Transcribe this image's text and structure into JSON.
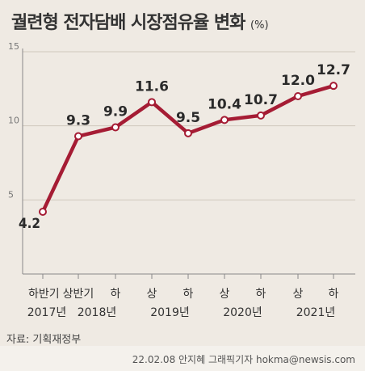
{
  "title": "궐련형 전자담배 시장점유율 변화",
  "unit": "(%)",
  "source": "자료: 기획재정부",
  "credit": "22.02.08 안지혜 그래픽기자 hokma@newsis.com",
  "colors": {
    "line": "#a51c34",
    "background": "#efeae3",
    "grid": "#cfc8be"
  },
  "chart_data": {
    "type": "line",
    "title": "궐련형 전자담배 시장점유율 변화",
    "ylabel": "(%)",
    "xlabel": "",
    "ylim": [
      0,
      15
    ],
    "yticks": [
      5,
      10,
      15
    ],
    "grid": true,
    "categories": [
      "하반기 2017년",
      "상반기 2018년",
      "하 2018년",
      "상 2019년",
      "하 2019년",
      "상 2020년",
      "하 2020년",
      "상 2021년",
      "하 2021년"
    ],
    "tick_labels": [
      "하반기",
      "상반기",
      "하",
      "상",
      "하",
      "상",
      "하",
      "상",
      "하"
    ],
    "year_labels": [
      {
        "label": "2017년",
        "from": 0,
        "to": 0
      },
      {
        "label": "2018년",
        "from": 1,
        "to": 2
      },
      {
        "label": "2019년",
        "from": 3,
        "to": 4
      },
      {
        "label": "2020년",
        "from": 5,
        "to": 6
      },
      {
        "label": "2021년",
        "from": 7,
        "to": 8
      }
    ],
    "series": [
      {
        "values": [
          4.2,
          9.3,
          9.9,
          11.6,
          9.5,
          10.4,
          10.7,
          12.0,
          12.7
        ]
      }
    ],
    "data_labels": [
      "4.2",
      "9.3",
      "9.9",
      "11.6",
      "9.5",
      "10.4",
      "10.7",
      "12.0",
      "12.7"
    ]
  }
}
